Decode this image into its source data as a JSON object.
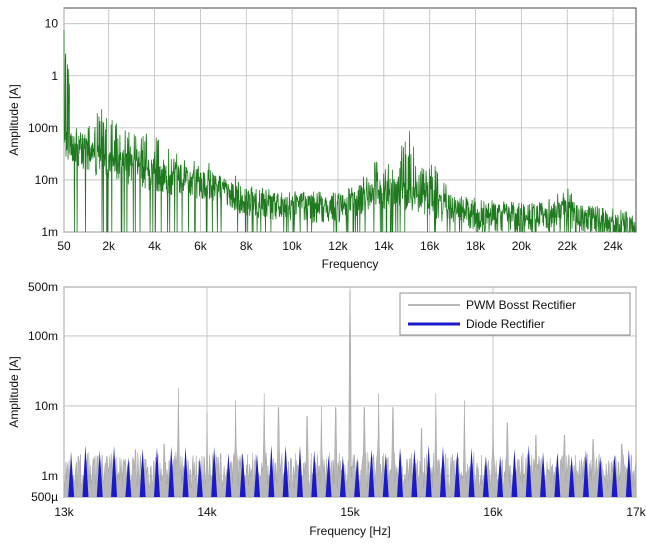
{
  "chart_data": [
    {
      "type": "line",
      "xlabel": "Frequency",
      "ylabel": "Amplitude [A]",
      "yscale": "log",
      "xlim": [
        50,
        25000
      ],
      "ylim": [
        0.001,
        20
      ],
      "grid": true,
      "x_ticks": [
        {
          "value": 50,
          "label": "50"
        },
        {
          "value": 2000,
          "label": "2k"
        },
        {
          "value": 4000,
          "label": "4k"
        },
        {
          "value": 6000,
          "label": "6k"
        },
        {
          "value": 8000,
          "label": "8k"
        },
        {
          "value": 10000,
          "label": "10k"
        },
        {
          "value": 12000,
          "label": "12k"
        },
        {
          "value": 14000,
          "label": "14k"
        },
        {
          "value": 16000,
          "label": "16k"
        },
        {
          "value": 18000,
          "label": "18k"
        },
        {
          "value": 20000,
          "label": "20k"
        },
        {
          "value": 22000,
          "label": "22k"
        },
        {
          "value": 24000,
          "label": "24k"
        }
      ],
      "y_ticks": [
        {
          "value": 0.001,
          "label": "1m"
        },
        {
          "value": 0.01,
          "label": "10m"
        },
        {
          "value": 0.1,
          "label": "100m"
        },
        {
          "value": 1,
          "label": "1"
        },
        {
          "value": 10,
          "label": "10"
        }
      ],
      "series": [
        {
          "color": "#1f7a1f",
          "peaks": [
            [
              50,
              12
            ],
            [
              500,
              0.12
            ],
            [
              700,
              0.15
            ],
            [
              1000,
              0.2
            ],
            [
              1200,
              0.09
            ],
            [
              1600,
              0.25
            ],
            [
              1800,
              0.35
            ],
            [
              2100,
              0.15
            ],
            [
              2500,
              0.12
            ],
            [
              3000,
              0.08
            ],
            [
              3400,
              0.07
            ],
            [
              3800,
              0.09
            ],
            [
              4400,
              0.05
            ],
            [
              5000,
              0.04
            ],
            [
              5500,
              0.03
            ],
            [
              6200,
              0.025
            ],
            [
              7000,
              0.015
            ],
            [
              8000,
              0.01
            ],
            [
              9000,
              0.008
            ],
            [
              10000,
              0.006
            ],
            [
              12000,
              0.005
            ],
            [
              13500,
              0.02
            ],
            [
              14000,
              0.03
            ],
            [
              14500,
              0.025
            ],
            [
              15000,
              0.15
            ],
            [
              15500,
              0.02
            ],
            [
              16000,
              0.03
            ],
            [
              17000,
              0.005
            ],
            [
              18000,
              0.004
            ],
            [
              20000,
              0.003
            ],
            [
              21000,
              0.004
            ],
            [
              22000,
              0.01
            ],
            [
              22500,
              0.003
            ],
            [
              24000,
              0.002
            ],
            [
              25000,
              0.0015
            ]
          ],
          "floor": [
            [
              50,
              0.05
            ],
            [
              1000,
              0.03
            ],
            [
              2000,
              0.02
            ],
            [
              4000,
              0.012
            ],
            [
              6000,
              0.008
            ],
            [
              8000,
              0.004
            ],
            [
              10000,
              0.003
            ],
            [
              12000,
              0.003
            ],
            [
              13500,
              0.005
            ],
            [
              14500,
              0.006
            ],
            [
              16000,
              0.004
            ],
            [
              17000,
              0.0025
            ],
            [
              20000,
              0.0018
            ],
            [
              22000,
              0.002
            ],
            [
              25000,
              0.0012
            ]
          ]
        }
      ]
    },
    {
      "type": "area",
      "xlabel": "Frequency [Hz]",
      "ylabel": "Amplitude [A]",
      "yscale": "log",
      "xlim": [
        13000,
        17000
      ],
      "ylim": [
        0.0005,
        0.5
      ],
      "grid": true,
      "legend_position": "top-right",
      "x_ticks": [
        {
          "value": 13000,
          "label": "13k"
        },
        {
          "value": 14000,
          "label": "14k"
        },
        {
          "value": 15000,
          "label": "15k"
        },
        {
          "value": 16000,
          "label": "16k"
        },
        {
          "value": 17000,
          "label": "17k"
        }
      ],
      "y_ticks": [
        {
          "value": 0.0005,
          "label": "500µ"
        },
        {
          "value": 0.001,
          "label": "1m"
        },
        {
          "value": 0.01,
          "label": "10m"
        },
        {
          "value": 0.1,
          "label": "100m"
        },
        {
          "value": 0.5,
          "label": "500m"
        }
      ],
      "series": [
        {
          "name": "PWM Bosst Rectifier",
          "color": "#b8b8b8",
          "peaks": [
            [
              13100,
              0.004
            ],
            [
              13300,
              0.004
            ],
            [
              13500,
              0.005
            ],
            [
              13700,
              0.006
            ],
            [
              13800,
              0.018
            ],
            [
              14000,
              0.008
            ],
            [
              14200,
              0.012
            ],
            [
              14400,
              0.015
            ],
            [
              14500,
              0.02
            ],
            [
              14700,
              0.015
            ],
            [
              14800,
              0.01
            ],
            [
              14900,
              0.02
            ],
            [
              15000,
              0.45
            ],
            [
              15100,
              0.02
            ],
            [
              15200,
              0.015
            ],
            [
              15300,
              0.02
            ],
            [
              15500,
              0.01
            ],
            [
              15600,
              0.015
            ],
            [
              15800,
              0.012
            ],
            [
              16000,
              0.01
            ],
            [
              16100,
              0.012
            ],
            [
              16300,
              0.008
            ],
            [
              16500,
              0.008
            ],
            [
              16700,
              0.007
            ],
            [
              16900,
              0.006
            ]
          ]
        },
        {
          "name": "Diode Rectifier",
          "color": "#1a1acc",
          "level_range": [
            0.0018,
            0.0028
          ]
        }
      ]
    }
  ]
}
